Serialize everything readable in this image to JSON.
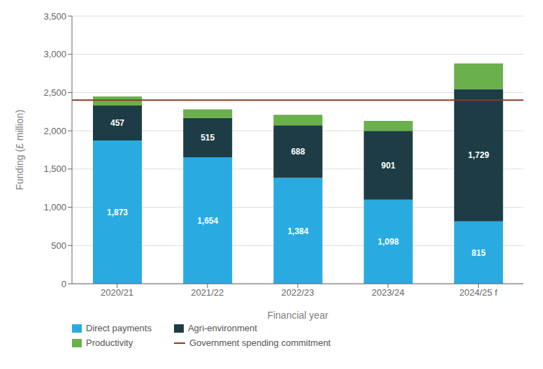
{
  "chart_data": {
    "type": "bar",
    "stacked": true,
    "grid": true,
    "legend": "bottom",
    "xlabel": "Financial year",
    "ylabel": "Funding (£ million)",
    "categories": [
      "2020/21",
      "2021/22",
      "2022/23",
      "2023/24",
      "2024/25 f"
    ],
    "series": [
      {
        "name": "Direct payments",
        "color": "#29ABE2",
        "values": [
          1873,
          1654,
          1384,
          1098,
          815
        ],
        "data_labels": true,
        "value_labels": [
          "1,873",
          "1,654",
          "1,384",
          "1,098",
          "815"
        ]
      },
      {
        "name": "Agri-environment",
        "color": "#1D3C45",
        "values": [
          457,
          515,
          688,
          901,
          1729
        ],
        "data_labels": true,
        "value_labels": [
          "457",
          "515",
          "688",
          "901",
          "1,729"
        ]
      },
      {
        "name": "Productivity",
        "color": "#6AB04C",
        "values": [
          120,
          111,
          138,
          131,
          336
        ]
      },
      {
        "name": "Government spending commitment",
        "type": "hline",
        "color": "#8B3A2A",
        "value": 2400
      }
    ],
    "ylim": [
      0,
      3500
    ],
    "yticks": [
      0,
      500,
      {
        "value": 1000,
        "label": "1,000"
      },
      {
        "value": 1500,
        "label": "1,500"
      },
      {
        "value": 2000,
        "label": "2,000"
      },
      {
        "value": 2500,
        "label": "2,500"
      },
      {
        "value": 3000,
        "label": "3,000"
      },
      {
        "value": 3500,
        "label": "3,500"
      }
    ]
  }
}
